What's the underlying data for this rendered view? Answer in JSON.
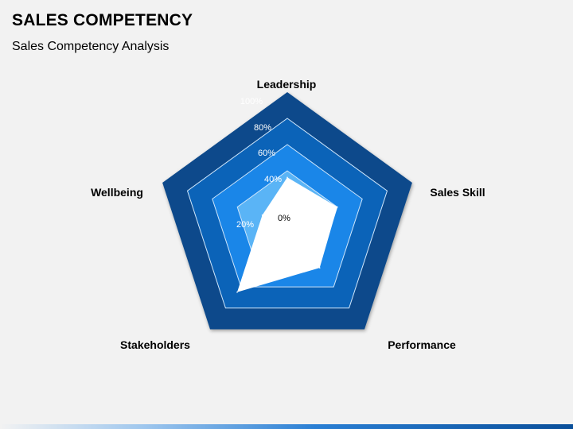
{
  "title": "SALES COMPETENCY",
  "subtitle": "Sales Competency Analysis",
  "chart_data": {
    "type": "radar",
    "axes": [
      "Leadership",
      "Sales Skill",
      "Performance",
      "Stakeholders",
      "Wellbeing"
    ],
    "tick_labels": [
      "0%",
      "20%",
      "40%",
      "60%",
      "80%",
      "100%"
    ],
    "rlim": [
      0,
      100
    ],
    "ring_colors": [
      "#0b4a8b",
      "#0b63b8",
      "#1a86e8",
      "#5ab4f6"
    ],
    "series": [
      {
        "values": [
          35,
          40,
          42,
          65,
          20
        ],
        "color": "#ffffff"
      }
    ]
  }
}
